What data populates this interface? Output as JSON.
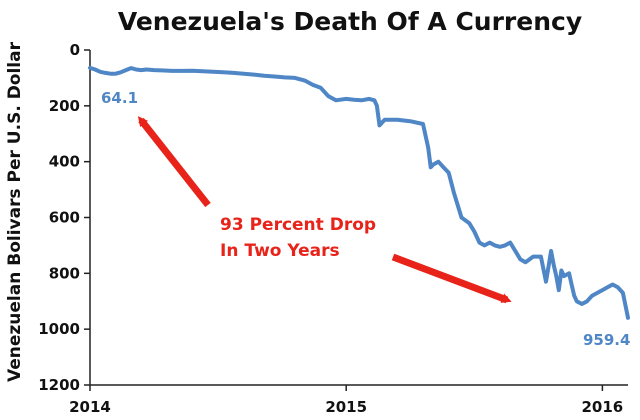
{
  "chart_data": {
    "type": "line",
    "title": "Venezuela's Death Of A Currency",
    "xlabel": "",
    "ylabel": "Venezuelan Bolivars Per U.S. Dollar",
    "y_inverted": true,
    "ylim": [
      0,
      1200
    ],
    "xlim": [
      2014,
      2016.1
    ],
    "y_ticks": [
      "0",
      "200",
      "400",
      "600",
      "800",
      "1000",
      "1200"
    ],
    "y_tick_values": [
      0,
      200,
      400,
      600,
      800,
      1000,
      1200
    ],
    "x_ticks": [
      "2014",
      "2015",
      "2016"
    ],
    "x_tick_values": [
      2014,
      2015,
      2016
    ],
    "grid": false,
    "line_color": "#4f86c6",
    "annotation_color": "#e8231a",
    "series": [
      {
        "x": [
          2014.0,
          2014.02,
          2014.04,
          2014.06,
          2014.08,
          2014.1,
          2014.12,
          2014.14,
          2014.16,
          2014.18,
          2014.2,
          2014.22,
          2014.25,
          2014.28,
          2014.32,
          2014.36,
          2014.4,
          2014.44,
          2014.48,
          2014.52,
          2014.56,
          2014.6,
          2014.64,
          2014.68,
          2014.72,
          2014.76,
          2014.8,
          2014.84,
          2014.87,
          2014.9,
          2014.93,
          2014.96,
          2015.0,
          2015.03,
          2015.06,
          2015.09,
          2015.11,
          2015.12,
          2015.13,
          2015.15,
          2015.2,
          2015.25,
          2015.3,
          2015.32,
          2015.33,
          2015.34,
          2015.36,
          2015.38,
          2015.4,
          2015.42,
          2015.45,
          2015.48,
          2015.5,
          2015.52,
          2015.54,
          2015.56,
          2015.58,
          2015.6,
          2015.62,
          2015.64,
          2015.66,
          2015.68,
          2015.7,
          2015.73,
          2015.76,
          2015.78,
          2015.8,
          2015.81,
          2015.82,
          2015.83,
          2015.84,
          2015.85,
          2015.87,
          2015.88,
          2015.89,
          2015.9,
          2015.92,
          2015.94,
          2015.96,
          2015.98,
          2016.0,
          2016.02,
          2016.04,
          2016.06,
          2016.08,
          2016.1
        ],
        "values": [
          64.1,
          70,
          78,
          82,
          85,
          85,
          80,
          72,
          65,
          70,
          72,
          70,
          72,
          73,
          75,
          75,
          74,
          76,
          78,
          80,
          82,
          85,
          88,
          92,
          95,
          98,
          100,
          110,
          125,
          135,
          165,
          180,
          175,
          178,
          180,
          175,
          180,
          200,
          270,
          250,
          250,
          255,
          265,
          350,
          420,
          410,
          400,
          420,
          440,
          510,
          600,
          620,
          650,
          690,
          700,
          690,
          700,
          705,
          700,
          690,
          720,
          750,
          760,
          740,
          740,
          830,
          720,
          770,
          810,
          860,
          790,
          810,
          800,
          840,
          880,
          900,
          910,
          900,
          880,
          870,
          860,
          850,
          840,
          850,
          870,
          959.4
        ]
      }
    ],
    "data_labels": [
      "64.1",
      "959.4"
    ],
    "annotation": {
      "line1": "93 Percent Drop",
      "line2": "In Two Years"
    }
  }
}
